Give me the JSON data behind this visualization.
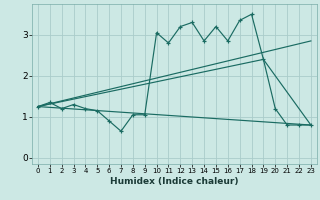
{
  "title": "",
  "xlabel": "Humidex (Indice chaleur)",
  "background_color": "#cce8e4",
  "grid_color": "#aaccca",
  "line_color": "#1a6b62",
  "xlim": [
    -0.5,
    23.5
  ],
  "ylim": [
    -0.15,
    3.75
  ],
  "yticks": [
    0,
    1,
    2,
    3
  ],
  "xticks": [
    0,
    1,
    2,
    3,
    4,
    5,
    6,
    7,
    8,
    9,
    10,
    11,
    12,
    13,
    14,
    15,
    16,
    17,
    18,
    19,
    20,
    21,
    22,
    23
  ],
  "series_main": {
    "x": [
      0,
      1,
      2,
      3,
      4,
      5,
      6,
      7,
      8,
      9,
      10,
      11,
      12,
      13,
      14,
      15,
      16,
      17,
      18,
      19,
      20,
      21,
      22,
      23
    ],
    "y": [
      1.25,
      1.35,
      1.2,
      1.3,
      1.2,
      1.15,
      0.9,
      0.65,
      1.05,
      1.05,
      3.05,
      2.8,
      3.2,
      3.3,
      2.85,
      3.2,
      2.85,
      3.35,
      3.5,
      2.4,
      1.2,
      0.8,
      0.8,
      0.8
    ]
  },
  "trend_lines": [
    {
      "x": [
        0,
        23
      ],
      "y": [
        1.25,
        2.85
      ]
    },
    {
      "x": [
        0,
        19,
        23
      ],
      "y": [
        1.25,
        2.4,
        0.8
      ]
    },
    {
      "x": [
        0,
        23
      ],
      "y": [
        1.25,
        0.8
      ]
    }
  ]
}
